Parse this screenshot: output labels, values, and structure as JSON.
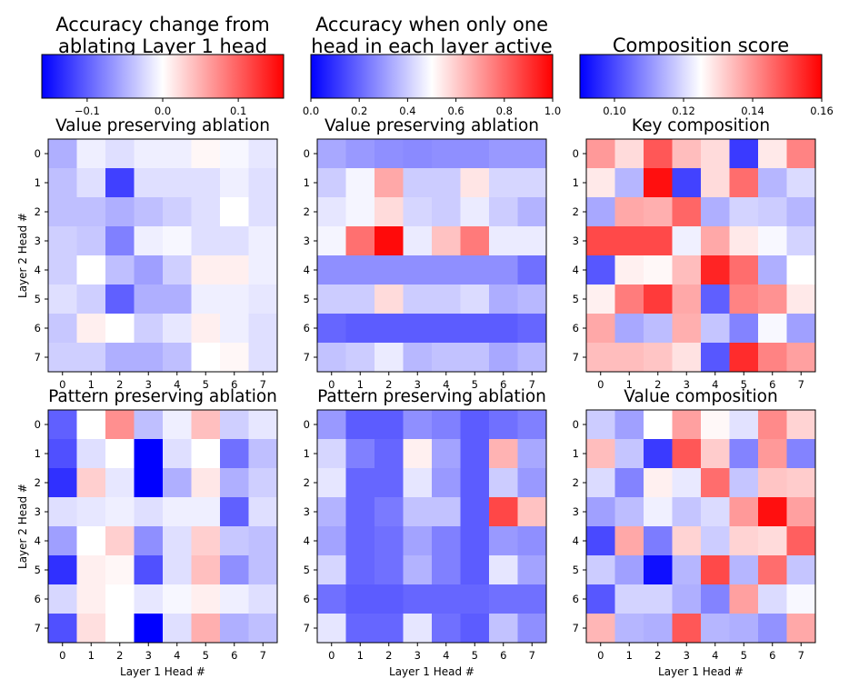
{
  "chart_data": [
    {
      "type": "heatmap",
      "title": "Value preserving ablation",
      "column_title": [
        "Accuracy change from",
        "ablating Layer 1 head"
      ],
      "xlabel": "",
      "ylabel": "Layer 2 Head #",
      "x": [
        "0",
        "1",
        "2",
        "3",
        "4",
        "5",
        "6",
        "7"
      ],
      "y": [
        "0",
        "1",
        "2",
        "3",
        "4",
        "5",
        "6",
        "7"
      ],
      "colorbar": {
        "range": [
          -0.16,
          0.16
        ],
        "ticks": [
          -0.1,
          0.0,
          0.1
        ],
        "tick_labels": [
          "−0.1",
          "0.0",
          "0.1"
        ]
      },
      "values": [
        [
          -0.05,
          -0.01,
          -0.02,
          -0.01,
          -0.01,
          0.005,
          -0.005,
          -0.015
        ],
        [
          -0.04,
          -0.02,
          -0.12,
          -0.02,
          -0.02,
          -0.02,
          -0.01,
          -0.02
        ],
        [
          -0.04,
          -0.04,
          -0.05,
          -0.04,
          -0.03,
          -0.02,
          0.0,
          -0.02
        ],
        [
          -0.03,
          -0.035,
          -0.08,
          -0.01,
          -0.005,
          -0.02,
          -0.02,
          -0.01
        ],
        [
          -0.03,
          0.0,
          -0.04,
          -0.06,
          -0.03,
          0.01,
          0.01,
          -0.01
        ],
        [
          -0.02,
          -0.03,
          -0.1,
          -0.05,
          -0.05,
          -0.01,
          -0.01,
          -0.015
        ],
        [
          -0.035,
          0.01,
          0.0,
          -0.03,
          -0.015,
          0.01,
          -0.01,
          -0.02
        ],
        [
          -0.03,
          -0.03,
          -0.05,
          -0.05,
          -0.04,
          0.0,
          0.005,
          -0.02
        ]
      ]
    },
    {
      "type": "heatmap",
      "title": "Value preserving ablation",
      "column_title": [
        "Accuracy when only one",
        "head in each layer active"
      ],
      "xlabel": "",
      "ylabel": "",
      "x": [
        "0",
        "1",
        "2",
        "3",
        "4",
        "5",
        "6",
        "7"
      ],
      "y": [
        "0",
        "1",
        "2",
        "3",
        "4",
        "5",
        "6",
        "7"
      ],
      "colorbar": {
        "range": [
          0.0,
          1.0
        ],
        "ticks": [
          0.0,
          0.2,
          0.4,
          0.6,
          0.8,
          1.0
        ],
        "tick_labels": [
          "0.0",
          "0.2",
          "0.4",
          "0.6",
          "0.8",
          "1.0"
        ]
      },
      "values": [
        [
          0.33,
          0.3,
          0.28,
          0.27,
          0.28,
          0.28,
          0.3,
          0.3
        ],
        [
          0.4,
          0.48,
          0.67,
          0.4,
          0.4,
          0.55,
          0.42,
          0.42
        ],
        [
          0.45,
          0.48,
          0.57,
          0.42,
          0.4,
          0.46,
          0.4,
          0.35
        ],
        [
          0.48,
          0.78,
          0.98,
          0.46,
          0.62,
          0.76,
          0.46,
          0.46
        ],
        [
          0.28,
          0.28,
          0.28,
          0.28,
          0.28,
          0.28,
          0.28,
          0.22
        ],
        [
          0.4,
          0.4,
          0.57,
          0.4,
          0.4,
          0.43,
          0.34,
          0.36
        ],
        [
          0.2,
          0.18,
          0.18,
          0.18,
          0.18,
          0.18,
          0.18,
          0.2
        ],
        [
          0.38,
          0.4,
          0.46,
          0.36,
          0.38,
          0.38,
          0.33,
          0.36
        ]
      ]
    },
    {
      "type": "heatmap",
      "title": "Key composition",
      "column_title": [
        "Composition score"
      ],
      "xlabel": "",
      "ylabel": "",
      "x": [
        "0",
        "1",
        "2",
        "3",
        "4",
        "5",
        "6",
        "7"
      ],
      "y": [
        "0",
        "1",
        "2",
        "3",
        "4",
        "5",
        "6",
        "7"
      ],
      "colorbar": {
        "range": [
          0.09,
          0.16
        ],
        "ticks": [
          0.1,
          0.12,
          0.14,
          0.16
        ],
        "tick_labels": [
          "0.10",
          "0.12",
          "0.14",
          "0.16"
        ]
      },
      "values": [
        [
          0.139,
          0.13,
          0.148,
          0.134,
          0.13,
          0.098,
          0.128,
          0.142
        ],
        [
          0.128,
          0.115,
          0.158,
          0.099,
          0.13,
          0.145,
          0.115,
          0.12
        ],
        [
          0.113,
          0.137,
          0.136,
          0.146,
          0.114,
          0.119,
          0.118,
          0.115
        ],
        [
          0.15,
          0.15,
          0.15,
          0.123,
          0.137,
          0.128,
          0.124,
          0.119
        ],
        [
          0.102,
          0.127,
          0.126,
          0.134,
          0.155,
          0.145,
          0.114,
          0.125
        ],
        [
          0.127,
          0.143,
          0.152,
          0.137,
          0.103,
          0.142,
          0.14,
          0.128
        ],
        [
          0.137,
          0.113,
          0.116,
          0.136,
          0.117,
          0.108,
          0.124,
          0.112
        ],
        [
          0.134,
          0.134,
          0.133,
          0.129,
          0.102,
          0.154,
          0.142,
          0.138
        ]
      ]
    },
    {
      "type": "heatmap",
      "title": "Pattern preserving ablation",
      "xlabel": "Layer 1 Head #",
      "ylabel": "Layer 2 Head #",
      "x": [
        "0",
        "1",
        "2",
        "3",
        "4",
        "5",
        "6",
        "7"
      ],
      "y": [
        "0",
        "1",
        "2",
        "3",
        "4",
        "5",
        "6",
        "7"
      ],
      "colorbar_ref": 0,
      "values": [
        [
          -0.1,
          0.0,
          0.07,
          -0.04,
          -0.01,
          0.04,
          -0.03,
          -0.015
        ],
        [
          -0.11,
          -0.02,
          0.0,
          -0.16,
          -0.02,
          0.0,
          -0.09,
          -0.04
        ],
        [
          -0.13,
          0.03,
          -0.015,
          -0.16,
          -0.05,
          0.015,
          -0.05,
          -0.03
        ],
        [
          -0.02,
          -0.015,
          -0.01,
          -0.02,
          -0.01,
          -0.01,
          -0.1,
          -0.02
        ],
        [
          -0.06,
          0.0,
          0.03,
          -0.07,
          -0.02,
          0.03,
          -0.035,
          -0.04
        ],
        [
          -0.13,
          0.01,
          0.005,
          -0.11,
          -0.02,
          0.04,
          -0.07,
          -0.04
        ],
        [
          -0.025,
          0.01,
          0.0,
          -0.015,
          -0.005,
          0.01,
          -0.01,
          -0.02
        ],
        [
          -0.11,
          0.02,
          0.0,
          -0.16,
          -0.02,
          0.05,
          -0.05,
          -0.04
        ]
      ]
    },
    {
      "type": "heatmap",
      "title": "Pattern preserving ablation",
      "xlabel": "Layer 1 Head #",
      "ylabel": "",
      "x": [
        "0",
        "1",
        "2",
        "3",
        "4",
        "5",
        "6",
        "7"
      ],
      "y": [
        "0",
        "1",
        "2",
        "3",
        "4",
        "5",
        "6",
        "7"
      ],
      "colorbar_ref": 1,
      "values": [
        [
          0.3,
          0.18,
          0.18,
          0.28,
          0.25,
          0.18,
          0.22,
          0.25
        ],
        [
          0.42,
          0.25,
          0.2,
          0.53,
          0.32,
          0.18,
          0.65,
          0.33
        ],
        [
          0.45,
          0.2,
          0.2,
          0.45,
          0.3,
          0.18,
          0.4,
          0.3
        ],
        [
          0.35,
          0.2,
          0.24,
          0.38,
          0.38,
          0.18,
          0.86,
          0.62
        ],
        [
          0.32,
          0.2,
          0.22,
          0.32,
          0.25,
          0.18,
          0.3,
          0.28
        ],
        [
          0.42,
          0.2,
          0.22,
          0.35,
          0.25,
          0.18,
          0.45,
          0.32
        ],
        [
          0.22,
          0.18,
          0.18,
          0.2,
          0.2,
          0.2,
          0.22,
          0.22
        ],
        [
          0.45,
          0.2,
          0.2,
          0.45,
          0.22,
          0.18,
          0.38,
          0.28
        ]
      ]
    },
    {
      "type": "heatmap",
      "title": "Value composition",
      "xlabel": "Layer 1 Head #",
      "ylabel": "",
      "x": [
        "0",
        "1",
        "2",
        "3",
        "4",
        "5",
        "6",
        "7"
      ],
      "y": [
        "0",
        "1",
        "2",
        "3",
        "4",
        "5",
        "6",
        "7"
      ],
      "colorbar_ref": 2,
      "values": [
        [
          0.118,
          0.112,
          0.125,
          0.138,
          0.126,
          0.121,
          0.141,
          0.131
        ],
        [
          0.134,
          0.117,
          0.098,
          0.148,
          0.132,
          0.108,
          0.139,
          0.108
        ],
        [
          0.12,
          0.108,
          0.127,
          0.122,
          0.145,
          0.117,
          0.133,
          0.132
        ],
        [
          0.112,
          0.116,
          0.123,
          0.117,
          0.12,
          0.139,
          0.158,
          0.138
        ],
        [
          0.1,
          0.137,
          0.107,
          0.131,
          0.118,
          0.131,
          0.13,
          0.147
        ],
        [
          0.118,
          0.112,
          0.092,
          0.115,
          0.15,
          0.115,
          0.145,
          0.117
        ],
        [
          0.102,
          0.119,
          0.119,
          0.114,
          0.108,
          0.138,
          0.12,
          0.124
        ],
        [
          0.135,
          0.115,
          0.114,
          0.148,
          0.115,
          0.114,
          0.11,
          0.137
        ]
      ]
    }
  ]
}
